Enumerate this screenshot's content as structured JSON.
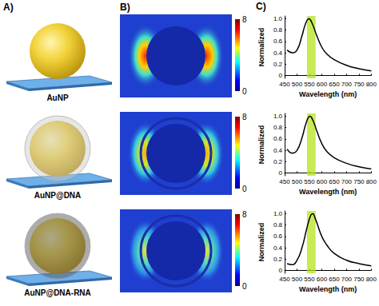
{
  "panels": {
    "A": {
      "label": "A)",
      "items": [
        {
          "label": "AuNP"
        },
        {
          "label": "AuNP@DNA"
        },
        {
          "label": "AuNP@DNA-RNA"
        }
      ]
    },
    "B": {
      "label": "B)",
      "colorbars": [
        {
          "range": [
            0,
            8
          ],
          "ticks": [
            0,
            8
          ]
        },
        {
          "range": [
            0,
            8
          ],
          "ticks": [
            0,
            8
          ]
        },
        {
          "range": [
            0,
            8
          ],
          "ticks": [
            0,
            8
          ]
        }
      ]
    },
    "C": {
      "label": "C)"
    }
  },
  "chart_data": [
    {
      "type": "line",
      "x_label": "Wavelength (nm)",
      "y_label": "Normalized",
      "color": "#000000",
      "x": [
        460,
        480,
        500,
        520,
        535,
        548,
        560,
        580,
        600,
        620,
        650,
        700,
        750,
        800
      ],
      "values": [
        0.45,
        0.4,
        0.45,
        0.7,
        0.92,
        1.0,
        0.93,
        0.7,
        0.5,
        0.38,
        0.28,
        0.18,
        0.12,
        0.08
      ],
      "band": [
        540,
        575
      ],
      "xlim": [
        450,
        800
      ],
      "xticks": [
        450,
        500,
        550,
        600,
        650,
        700,
        750,
        800
      ],
      "ylim": [
        -0.05,
        1.05
      ],
      "yticks": [
        0,
        0.2,
        0.4,
        0.6,
        0.8,
        {
          "value": 1,
          "label": "1.0"
        }
      ]
    },
    {
      "type": "line",
      "x_label": "Wavelength (nm)",
      "y_label": "Normalized",
      "color": "#000000",
      "x": [
        460,
        480,
        500,
        520,
        538,
        552,
        565,
        580,
        600,
        620,
        650,
        700,
        750,
        800
      ],
      "values": [
        0.42,
        0.35,
        0.4,
        0.62,
        0.9,
        1.0,
        0.92,
        0.74,
        0.52,
        0.38,
        0.27,
        0.17,
        0.11,
        0.07
      ],
      "band": [
        540,
        575
      ],
      "xlim": [
        450,
        800
      ],
      "xticks": [
        450,
        500,
        550,
        600,
        650,
        700,
        750,
        800
      ],
      "ylim": [
        -0.05,
        1.05
      ],
      "yticks": [
        0,
        0.2,
        0.4,
        0.6,
        0.8,
        {
          "value": 1,
          "label": "1.0"
        }
      ]
    },
    {
      "type": "line",
      "x_label": "Wavelength (nm)",
      "y_label": "Normalized",
      "color": "#000000",
      "x": [
        460,
        480,
        500,
        520,
        540,
        555,
        563,
        575,
        600,
        620,
        650,
        700,
        750,
        800
      ],
      "values": [
        0.12,
        0.1,
        0.18,
        0.4,
        0.75,
        0.97,
        1.0,
        0.9,
        0.6,
        0.45,
        0.3,
        0.18,
        0.12,
        0.08
      ],
      "band": [
        540,
        575
      ],
      "xlim": [
        450,
        800
      ],
      "xticks": [
        450,
        500,
        550,
        600,
        650,
        700,
        750,
        800
      ],
      "ylim": [
        -0.05,
        1.05
      ],
      "yticks": [
        0,
        0.2,
        0.4,
        0.6,
        0.8,
        {
          "value": 1,
          "label": "1.0"
        }
      ]
    }
  ]
}
